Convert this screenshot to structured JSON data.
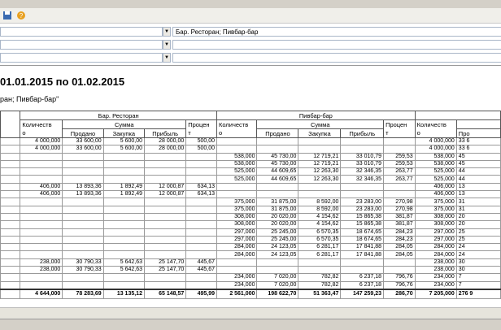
{
  "filter": {
    "value": "Бар. Ресторан; Пивбар-бар"
  },
  "report": {
    "title": "01.01.2015 по 01.02.2015",
    "subtitle": "ран; Пивбар-бар\""
  },
  "table": {
    "group_headers": [
      "Бар. Ресторан",
      "Пивбар-бар"
    ],
    "quantity_header": [
      "Количеств",
      "о"
    ],
    "sum_header": "Сумма",
    "percent_header": [
      "Процен",
      "т"
    ],
    "sub_headers": [
      "Продано",
      "Закупка",
      "Прибыль"
    ],
    "total_sold_header": "Про",
    "rows": [
      [
        "4 000,000",
        "33 600,00",
        "5 600,00",
        "28 000,00",
        "500,00",
        null,
        null,
        null,
        null,
        null,
        "4 000,000",
        "33 6"
      ],
      [
        "4 000,000",
        "33 600,00",
        "5 600,00",
        "28 000,00",
        "500,00",
        null,
        null,
        null,
        null,
        null,
        "4 000,000",
        "33 6"
      ],
      [
        null,
        null,
        null,
        null,
        null,
        "538,000",
        "45 730,00",
        "12 719,21",
        "33 010,79",
        "259,53",
        "538,000",
        "45"
      ],
      [
        null,
        null,
        null,
        null,
        null,
        "538,000",
        "45 730,00",
        "12 719,21",
        "33 010,79",
        "259,53",
        "538,000",
        "45"
      ],
      [
        null,
        null,
        null,
        null,
        null,
        "525,000",
        "44 609,65",
        "12 263,30",
        "32 346,35",
        "263,77",
        "525,000",
        "44"
      ],
      [
        null,
        null,
        null,
        null,
        null,
        "525,000",
        "44 609,65",
        "12 263,30",
        "32 346,35",
        "263,77",
        "525,000",
        "44"
      ],
      [
        "406,000",
        "13 893,36",
        "1 892,49",
        "12 000,87",
        "634,13",
        null,
        null,
        null,
        null,
        null,
        "406,000",
        "13"
      ],
      [
        "406,000",
        "13 893,36",
        "1 892,49",
        "12 000,87",
        "634,13",
        null,
        null,
        null,
        null,
        null,
        "406,000",
        "13"
      ],
      [
        null,
        null,
        null,
        null,
        null,
        "375,000",
        "31 875,00",
        "8 592,00",
        "23 283,00",
        "270,98",
        "375,000",
        "31"
      ],
      [
        null,
        null,
        null,
        null,
        null,
        "375,000",
        "31 875,00",
        "8 592,00",
        "23 283,00",
        "270,98",
        "375,000",
        "31"
      ],
      [
        null,
        null,
        null,
        null,
        null,
        "308,000",
        "20 020,00",
        "4 154,62",
        "15 865,38",
        "381,87",
        "308,000",
        "20"
      ],
      [
        null,
        null,
        null,
        null,
        null,
        "308,000",
        "20 020,00",
        "4 154,62",
        "15 865,38",
        "381,87",
        "308,000",
        "20"
      ],
      [
        null,
        null,
        null,
        null,
        null,
        "297,000",
        "25 245,00",
        "6 570,35",
        "18 674,65",
        "284,23",
        "297,000",
        "25"
      ],
      [
        null,
        null,
        null,
        null,
        null,
        "297,000",
        "25 245,00",
        "6 570,35",
        "18 674,65",
        "284,23",
        "297,000",
        "25"
      ],
      [
        null,
        null,
        null,
        null,
        null,
        "284,000",
        "24 123,05",
        "6 281,17",
        "17 841,88",
        "284,05",
        "284,000",
        "24"
      ],
      [
        null,
        null,
        null,
        null,
        null,
        "284,000",
        "24 123,05",
        "6 281,17",
        "17 841,88",
        "284,05",
        "284,000",
        "24"
      ],
      [
        "238,000",
        "30 790,33",
        "5 642,63",
        "25 147,70",
        "445,67",
        null,
        null,
        null,
        null,
        null,
        "238,000",
        "30"
      ],
      [
        "238,000",
        "30 790,33",
        "5 642,63",
        "25 147,70",
        "445,67",
        null,
        null,
        null,
        null,
        null,
        "238,000",
        "30"
      ],
      [
        null,
        null,
        null,
        null,
        null,
        "234,000",
        "7 020,00",
        "782,82",
        "6 237,18",
        "796,76",
        "234,000",
        "7"
      ],
      [
        null,
        null,
        null,
        null,
        null,
        "234,000",
        "7 020,00",
        "782,82",
        "6 237,18",
        "796,76",
        "234,000",
        "7"
      ]
    ],
    "total": [
      "4 644,000",
      "78 283,69",
      "13 135,12",
      "65 148,57",
      "495,99",
      "2 561,000",
      "198 622,70",
      "51 363,47",
      "147 259,23",
      "286,70",
      "7 205,000",
      "276 9"
    ]
  }
}
